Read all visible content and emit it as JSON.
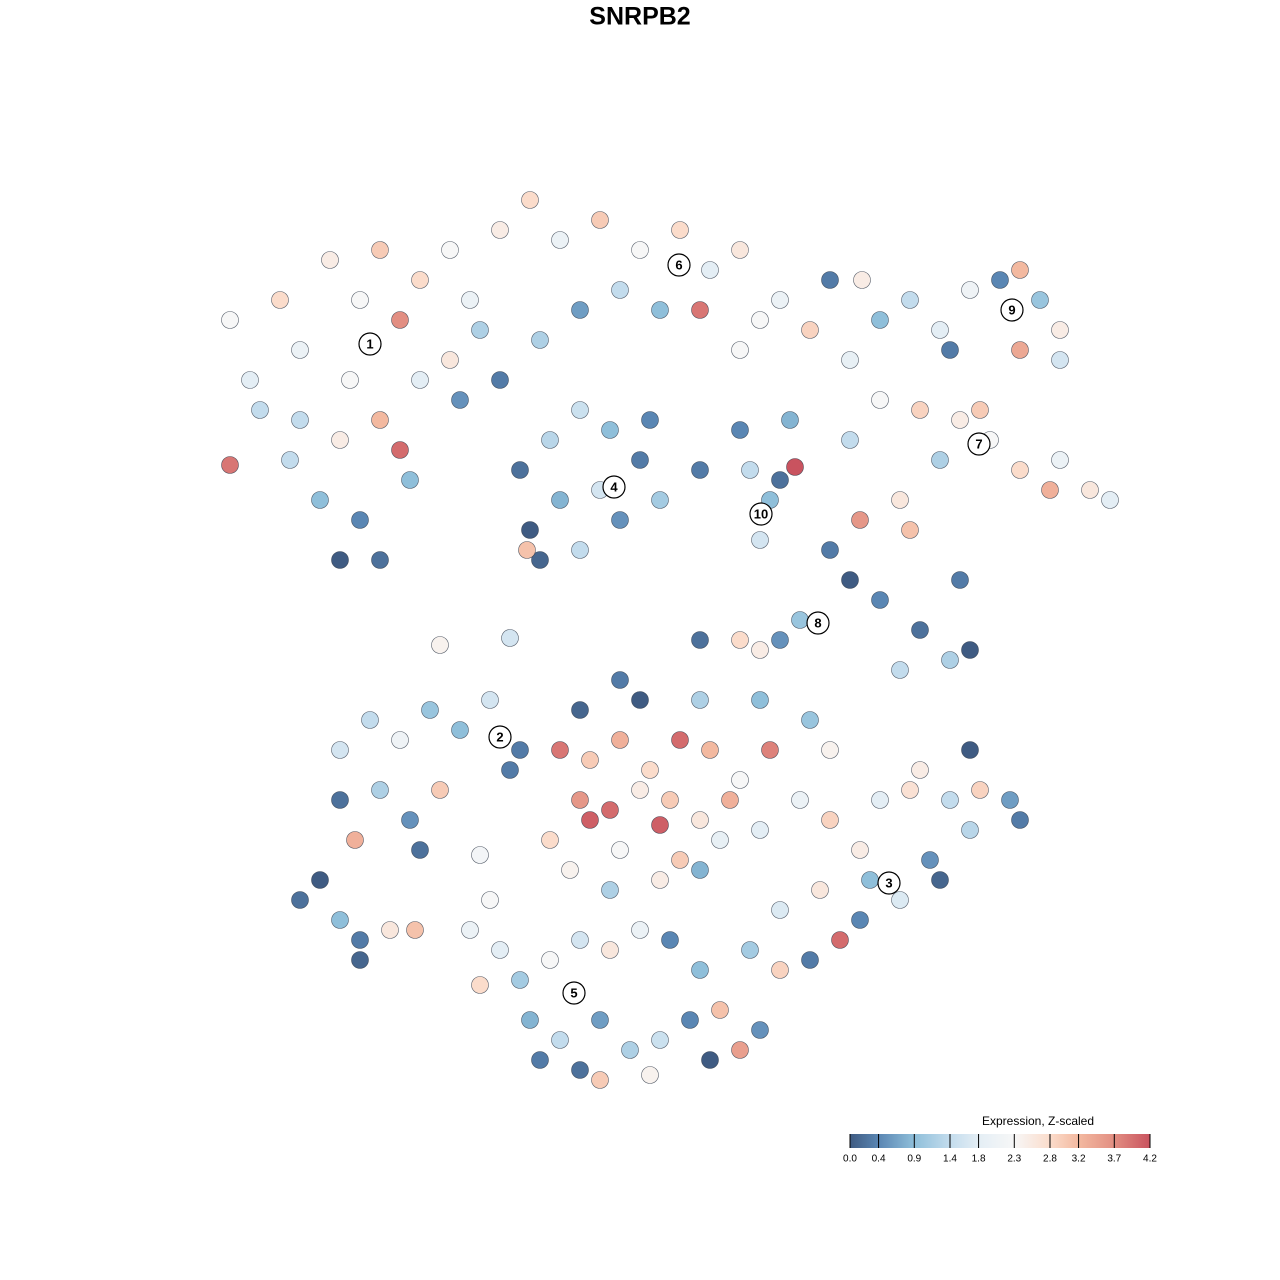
{
  "chart_data": {
    "type": "scatter",
    "title": "SNRPB2",
    "xlim": [
      0,
      128
    ],
    "ylim": [
      0,
      128
    ],
    "x": [
      23,
      25,
      28,
      30,
      33,
      36,
      38,
      40,
      42,
      45,
      47,
      30,
      34,
      38,
      40,
      35,
      42,
      32,
      36,
      34,
      38,
      29,
      23,
      26,
      45,
      48,
      50,
      46,
      41,
      50,
      53,
      56,
      60,
      64,
      68,
      71,
      74,
      78,
      81,
      62,
      66,
      70,
      58,
      54,
      76,
      83,
      88,
      91,
      94,
      97,
      100,
      102,
      104,
      106,
      102,
      106,
      95,
      85,
      88,
      92,
      96,
      99,
      102,
      106,
      109,
      111,
      105,
      94,
      98,
      90,
      91,
      86,
      85,
      52,
      55,
      58,
      61,
      64,
      66,
      62,
      58,
      54,
      56,
      60,
      53,
      65,
      52.7,
      70,
      75,
      77,
      76,
      78,
      79.5,
      79,
      74,
      83,
      85,
      88,
      92,
      95,
      97,
      90,
      96,
      80,
      78,
      76,
      74,
      70,
      34,
      37,
      40,
      43,
      46,
      49,
      52,
      34,
      38,
      41,
      44,
      35.5,
      42,
      48,
      51,
      30,
      32,
      34,
      36,
      39,
      41.5,
      36,
      56,
      59,
      62,
      65,
      68,
      71,
      74,
      77,
      58,
      61,
      64,
      67,
      70,
      73,
      76,
      55,
      59,
      66,
      62,
      68,
      72,
      57,
      61,
      66,
      70,
      64,
      70,
      76,
      62,
      58,
      81,
      83,
      80,
      83,
      86,
      88,
      91,
      95,
      98,
      101,
      97,
      93,
      90,
      86,
      84,
      82,
      78,
      78,
      81,
      87,
      94,
      102,
      97,
      92,
      49,
      50,
      48,
      52,
      55,
      58,
      61,
      64,
      67,
      70,
      53,
      56,
      60,
      63,
      66,
      69,
      72,
      74,
      71,
      58,
      60,
      65,
      54,
      76,
      47,
      75,
      44,
      51,
      86.2,
      74
    ],
    "y": [
      96,
      90,
      98,
      93,
      102,
      98,
      103,
      96,
      100,
      103,
      98,
      86,
      84,
      86,
      83,
      90,
      90,
      78,
      76,
      72,
      72,
      82,
      81.5,
      87,
      92,
      95,
      90,
      88,
      80,
      105,
      108,
      104,
      106,
      103,
      105,
      101,
      103,
      98,
      95,
      99,
      97,
      97,
      97,
      94,
      96,
      100,
      96,
      98,
      95,
      99,
      100,
      101,
      98,
      95,
      93,
      92,
      93,
      92,
      88,
      87,
      86,
      84,
      81,
      82,
      79,
      78,
      79,
      82,
      87,
      78,
      75,
      76,
      84,
      81,
      84,
      87,
      85,
      82,
      78,
      76,
      73,
      72,
      78,
      79,
      75,
      86,
      73,
      81,
      81,
      78,
      74,
      80,
      81.3,
      86,
      85,
      73,
      70,
      68,
      65,
      62,
      63,
      61,
      70,
      66,
      64,
      63,
      64,
      64,
      53,
      56,
      54,
      57,
      55,
      58,
      53,
      48,
      49,
      46,
      49,
      44,
      43,
      42.5,
      51,
      38,
      40,
      36,
      34,
      35,
      35,
      32,
      53,
      52,
      54,
      51,
      54,
      53,
      50,
      53,
      48,
      47,
      49,
      48,
      46,
      48,
      45,
      44,
      46,
      45.5,
      43,
      42,
      44,
      41,
      39,
      40,
      41,
      58,
      58,
      58,
      60,
      57,
      56,
      53,
      48,
      46,
      43,
      48,
      49,
      48,
      49,
      48,
      45,
      42,
      38,
      36,
      34,
      39,
      37,
      31,
      32,
      40,
      40,
      46,
      53,
      51,
      38,
      33,
      29.5,
      30,
      32,
      34,
      33,
      35,
      34,
      31,
      26,
      24,
      26,
      23,
      24,
      26,
      27,
      23,
      22,
      21,
      20,
      20.5,
      22,
      25,
      35,
      33,
      63.5,
      64.2,
      100,
      93
    ],
    "values": [
      2.3,
      1.8,
      2.8,
      2.0,
      2.5,
      2.3,
      3.0,
      3.7,
      2.8,
      2.3,
      2.0,
      1.4,
      2.5,
      3.2,
      4.0,
      2.3,
      1.8,
      0.9,
      0.4,
      0.0,
      0.2,
      1.4,
      3.9,
      1.4,
      2.6,
      1.2,
      0.3,
      0.5,
      0.9,
      2.5,
      2.8,
      2.0,
      3.0,
      2.3,
      2.8,
      1.8,
      2.6,
      2.0,
      2.9,
      1.4,
      0.9,
      3.9,
      0.6,
      1.2,
      2.3,
      0.3,
      0.9,
      1.4,
      1.8,
      2.1,
      0.4,
      3.2,
      1.0,
      2.5,
      3.4,
      1.6,
      0.3,
      1.9,
      2.3,
      2.9,
      2.5,
      2.3,
      2.8,
      2.0,
      2.6,
      1.8,
      3.3,
      1.2,
      3.0,
      2.6,
      3.1,
      3.6,
      1.4,
      0.2,
      1.3,
      1.5,
      0.9,
      0.3,
      1.1,
      0.5,
      1.4,
      0.1,
      0.8,
      1.6,
      0.0,
      0.4,
      3.1,
      0.3,
      1.4,
      0.9,
      1.6,
      0.2,
      4.2,
      0.8,
      0.4,
      0.3,
      0.0,
      0.4,
      0.2,
      1.2,
      0.0,
      1.4,
      0.3,
      1.0,
      0.5,
      2.5,
      2.8,
      0.2,
      1.6,
      1.4,
      2.1,
      1.0,
      0.9,
      1.6,
      0.3,
      0.2,
      1.2,
      0.5,
      3.0,
      3.3,
      0.2,
      2.2,
      0.3,
      0.2,
      0.0,
      0.9,
      0.3,
      2.6,
      3.1,
      0.1,
      3.9,
      3.0,
      3.3,
      2.8,
      4.0,
      3.2,
      2.3,
      3.8,
      3.6,
      4.0,
      2.5,
      3.0,
      2.6,
      3.3,
      1.8,
      2.8,
      4.1,
      4.1,
      2.3,
      3.0,
      1.9,
      2.4,
      1.2,
      2.5,
      0.8,
      0.0,
      1.2,
      0.9,
      0.3,
      0.1,
      1.0,
      2.4,
      2.0,
      2.9,
      2.5,
      1.8,
      2.7,
      1.4,
      2.9,
      0.6,
      1.3,
      0.5,
      1.7,
      0.4,
      4.0,
      2.6,
      1.7,
      2.9,
      0.3,
      0.9,
      0.1,
      0.3,
      0.0,
      2.5,
      2.3,
      1.8,
      2.8,
      1.1,
      2.3,
      1.6,
      2.6,
      2.0,
      0.4,
      0.9,
      0.8,
      1.4,
      0.6,
      1.2,
      1.5,
      0.4,
      3.1,
      3.5,
      0.0,
      0.2,
      3.0,
      2.4,
      0.3,
      0.5,
      2.0,
      1.1,
      2.4,
      1.6,
      2.5,
      2.3
    ],
    "clusters": [
      {
        "label": "1",
        "x": 37,
        "y": 93.6
      },
      {
        "label": "6",
        "x": 67.9,
        "y": 101.5
      },
      {
        "label": "9",
        "x": 101.2,
        "y": 97
      },
      {
        "label": "7",
        "x": 97.9,
        "y": 83.6
      },
      {
        "label": "4",
        "x": 61.4,
        "y": 79.3
      },
      {
        "label": "10",
        "x": 76.1,
        "y": 76.6
      },
      {
        "label": "8",
        "x": 81.8,
        "y": 65.7
      },
      {
        "label": "2",
        "x": 50,
        "y": 54.3
      },
      {
        "label": "3",
        "x": 88.9,
        "y": 39.7
      },
      {
        "label": "5",
        "x": 57.4,
        "y": 28.7
      }
    ],
    "colorbar": {
      "title": "Expression, Z-scaled",
      "ticks": [
        {
          "value": 0,
          "label": "0.0"
        },
        0.4,
        0.9,
        1.4,
        1.8,
        2.3,
        2.8,
        3.2,
        3.7,
        4.2
      ],
      "colors": [
        "#3f5b82",
        "#5a86b3",
        "#8fbfda",
        "#c3dced",
        "#e4eef5",
        "#f7f7f7",
        "#fbdccb",
        "#f3b9a0",
        "#e28e82",
        "#c9535f"
      ]
    }
  }
}
